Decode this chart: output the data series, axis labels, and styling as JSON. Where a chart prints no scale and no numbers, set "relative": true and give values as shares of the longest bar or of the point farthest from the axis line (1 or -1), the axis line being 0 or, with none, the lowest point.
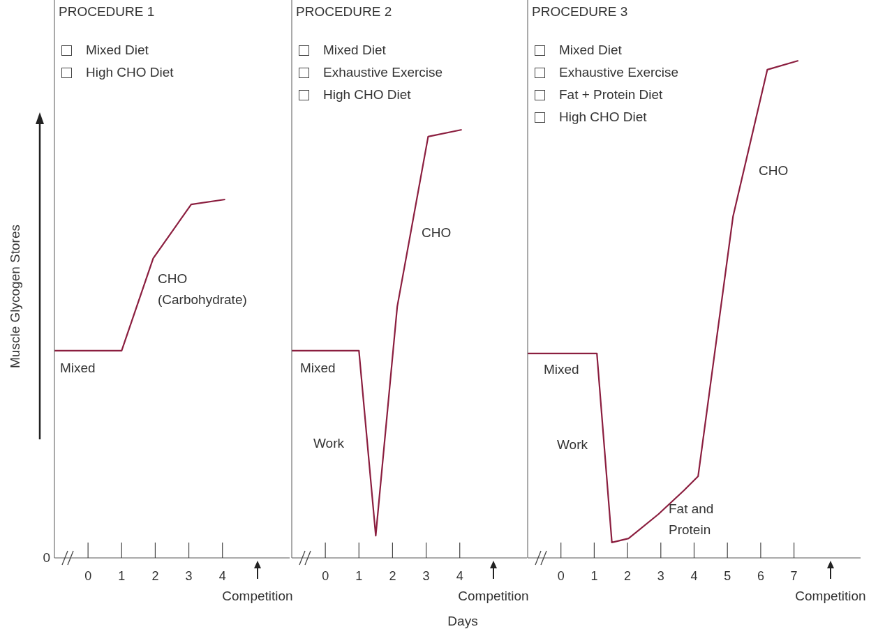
{
  "chart_data": [
    {
      "type": "line",
      "relative": true,
      "title": "PROCEDURE 1",
      "ylabel": "Muscle Glycogen Stores",
      "color": "#8b1e3f",
      "marker": "none",
      "line_style": "solid",
      "x": [
        -1,
        1,
        1.94,
        3.07,
        4.08
      ],
      "values": [
        0.578,
        0.578,
        0.836,
        0.986,
        1
      ],
      "xlim": [
        -1,
        6
      ],
      "xticks": [
        0,
        1,
        2,
        3,
        4
      ],
      "annotations": [
        "Mixed Diet",
        "High CHO Diet",
        "0",
        "Mixed",
        "CHO\n(Carbohydrate)",
        "Competition"
      ]
    },
    {
      "type": "line",
      "relative": true,
      "title": "PROCEDURE 2",
      "xlabel": "Days",
      "color": "#8b1e3f",
      "marker": "none",
      "line_style": "solid",
      "x": [
        -1,
        1,
        1.5,
        2.14,
        3.06,
        4.06
      ],
      "values": [
        0.484,
        0.484,
        0.052,
        0.587,
        0.984,
        1
      ],
      "xlim": [
        -1,
        6
      ],
      "xticks": [
        0,
        1,
        2,
        3,
        4
      ],
      "annotations": [
        "Mixed Diet",
        "Exhaustive Exercise",
        "High CHO Diet",
        "Mixed",
        "Work",
        "CHO",
        "Competition"
      ]
    },
    {
      "type": "line",
      "relative": true,
      "title": "PROCEDURE 3",
      "color": "#8b1e3f",
      "marker": "none",
      "line_style": "solid",
      "x": [
        -1,
        1.08,
        1.53,
        2.03,
        2.93,
        3.7,
        4.12,
        5.17,
        6.2,
        7.13
      ],
      "values": [
        0.411,
        0.411,
        0.031,
        0.039,
        0.088,
        0.136,
        0.164,
        0.687,
        0.982,
        1
      ],
      "xlim": [
        -1,
        9
      ],
      "xticks": [
        0,
        1,
        2,
        3,
        4,
        5,
        6,
        7
      ],
      "annotations": [
        "Mixed Diet",
        "Exhaustive Exercise",
        "Fat + Protein Diet",
        "High CHO Diet",
        "Mixed",
        "Work",
        "CHO",
        "Fat and\nProtein",
        "Competition"
      ]
    }
  ]
}
